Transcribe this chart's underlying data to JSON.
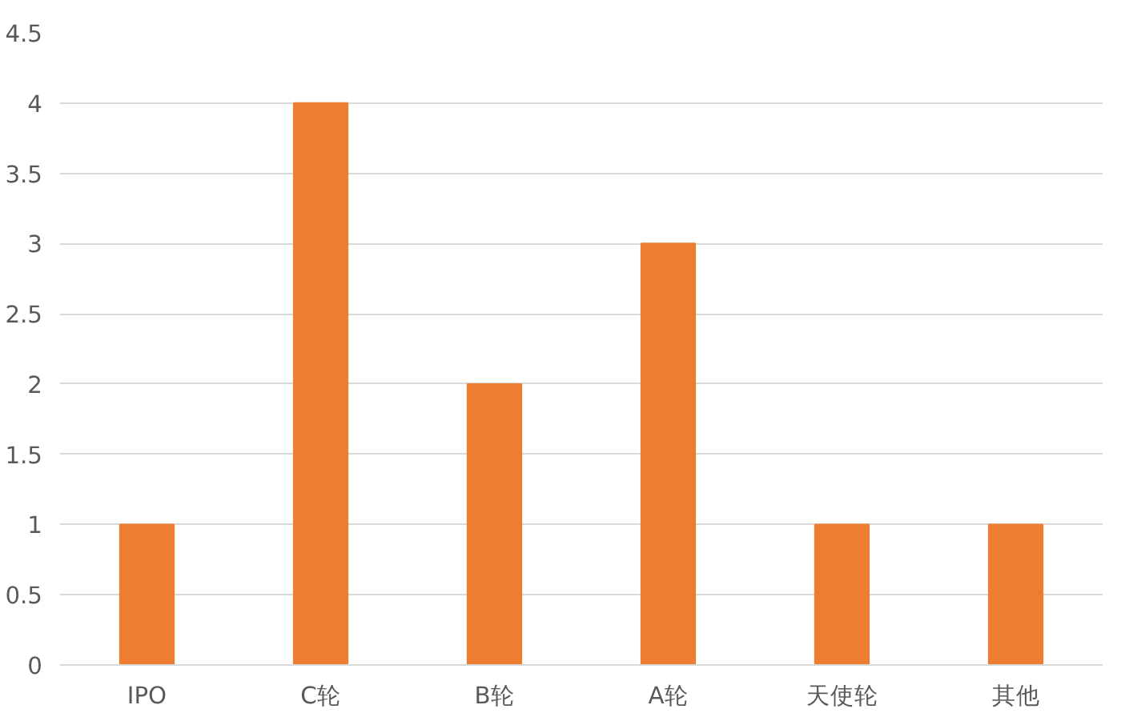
{
  "chart_data": {
    "type": "bar",
    "categories": [
      "IPO",
      "C轮",
      "B轮",
      "A轮",
      "天使轮",
      "其他"
    ],
    "values": [
      1,
      4,
      2,
      3,
      1,
      1
    ],
    "color": "#ed7d31",
    "ylim": [
      0,
      4.5
    ],
    "yticks": [
      0,
      0.5,
      1,
      1.5,
      2,
      2.5,
      3,
      3.5,
      4,
      4.5
    ],
    "grid": "y"
  }
}
